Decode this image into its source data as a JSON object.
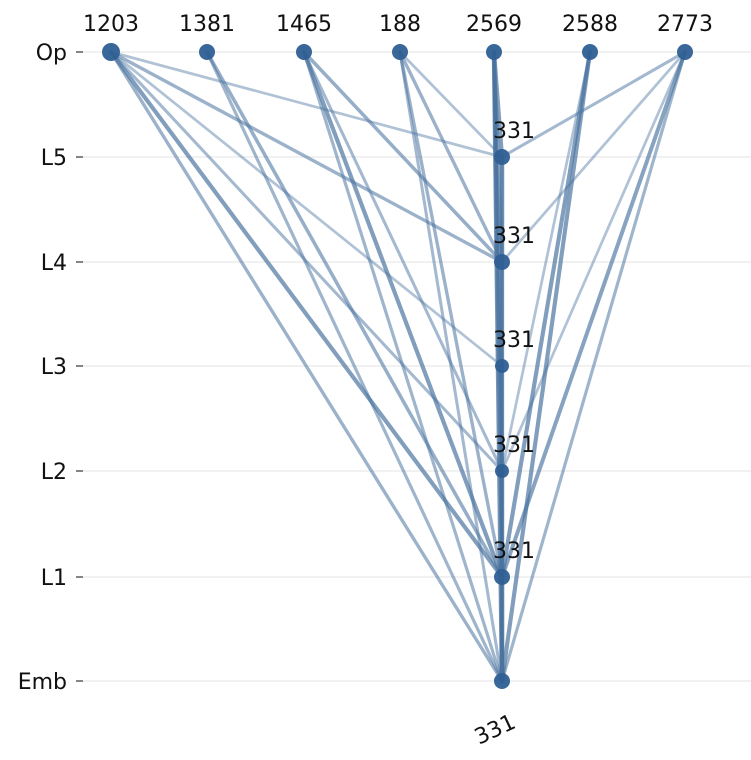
{
  "chart_data": {
    "type": "scatter",
    "y_levels": [
      "Op",
      "L5",
      "L4",
      "L3",
      "L2",
      "L1",
      "Emb"
    ],
    "top_labels": [
      "1203",
      "1381",
      "1465",
      "188",
      "2569",
      "2588",
      "2773"
    ],
    "column_label": "331",
    "node_labels": [
      {
        "level": "L5",
        "text": "331"
      },
      {
        "level": "L4",
        "text": "331"
      },
      {
        "level": "L3",
        "text": "331"
      },
      {
        "level": "L2",
        "text": "331"
      },
      {
        "level": "L1",
        "text": "331"
      }
    ],
    "nodes": [
      {
        "id": "op-1203",
        "level": "Op",
        "col": 0,
        "size": 9
      },
      {
        "id": "op-1381",
        "level": "Op",
        "col": 1,
        "size": 8
      },
      {
        "id": "op-1465",
        "level": "Op",
        "col": 2,
        "size": 8
      },
      {
        "id": "op-188",
        "level": "Op",
        "col": 3,
        "size": 8
      },
      {
        "id": "op-2569",
        "level": "Op",
        "col": 4,
        "size": 8
      },
      {
        "id": "op-2588",
        "level": "Op",
        "col": 5,
        "size": 8
      },
      {
        "id": "op-2773",
        "level": "Op",
        "col": 6,
        "size": 8
      },
      {
        "id": "l5-331",
        "level": "L5",
        "col": 7,
        "size": 8
      },
      {
        "id": "l4-331",
        "level": "L4",
        "col": 7,
        "size": 8
      },
      {
        "id": "l3-331",
        "level": "L3",
        "col": 7,
        "size": 7
      },
      {
        "id": "l2-331",
        "level": "L2",
        "col": 7,
        "size": 7
      },
      {
        "id": "l1-331",
        "level": "L1",
        "col": 7,
        "size": 8
      },
      {
        "id": "emb-331",
        "level": "Emb",
        "col": 7,
        "size": 8
      }
    ],
    "edges": [
      {
        "from": "op-1203",
        "to": "l5-331",
        "weight": 0.35
      },
      {
        "from": "op-1203",
        "to": "l4-331",
        "weight": 0.55
      },
      {
        "from": "op-1203",
        "to": "l3-331",
        "weight": 0.35
      },
      {
        "from": "op-1203",
        "to": "l2-331",
        "weight": 0.45
      },
      {
        "from": "op-1203",
        "to": "l1-331",
        "weight": 0.8
      },
      {
        "from": "op-1203",
        "to": "emb-331",
        "weight": 0.55
      },
      {
        "from": "op-1381",
        "to": "l1-331",
        "weight": 0.6
      },
      {
        "from": "op-1381",
        "to": "emb-331",
        "weight": 0.5
      },
      {
        "from": "op-1465",
        "to": "l4-331",
        "weight": 0.6
      },
      {
        "from": "op-1465",
        "to": "l2-331",
        "weight": 0.45
      },
      {
        "from": "op-1465",
        "to": "l1-331",
        "weight": 0.8
      },
      {
        "from": "op-1465",
        "to": "emb-331",
        "weight": 0.5
      },
      {
        "from": "op-188",
        "to": "l5-331",
        "weight": 0.35
      },
      {
        "from": "op-188",
        "to": "l4-331",
        "weight": 0.55
      },
      {
        "from": "op-188",
        "to": "l1-331",
        "weight": 0.55
      },
      {
        "from": "op-188",
        "to": "emb-331",
        "weight": 0.45
      },
      {
        "from": "op-2569",
        "to": "l5-331",
        "weight": 0.8
      },
      {
        "from": "op-2569",
        "to": "l4-331",
        "weight": 0.7
      },
      {
        "from": "op-2569",
        "to": "l3-331",
        "weight": 0.55
      },
      {
        "from": "op-2569",
        "to": "l2-331",
        "weight": 0.6
      },
      {
        "from": "op-2569",
        "to": "l1-331",
        "weight": 0.7
      },
      {
        "from": "op-2569",
        "to": "emb-331",
        "weight": 0.9
      },
      {
        "from": "op-2588",
        "to": "l2-331",
        "weight": 0.35
      },
      {
        "from": "op-2588",
        "to": "l1-331",
        "weight": 0.8
      },
      {
        "from": "op-2588",
        "to": "emb-331",
        "weight": 0.8
      },
      {
        "from": "op-2773",
        "to": "l5-331",
        "weight": 0.45
      },
      {
        "from": "op-2773",
        "to": "l4-331",
        "weight": 0.35
      },
      {
        "from": "op-2773",
        "to": "l2-331",
        "weight": 0.35
      },
      {
        "from": "op-2773",
        "to": "l1-331",
        "weight": 0.75
      },
      {
        "from": "op-2773",
        "to": "emb-331",
        "weight": 0.5
      },
      {
        "from": "l5-331",
        "to": "l4-331",
        "weight": 0.9
      },
      {
        "from": "l4-331",
        "to": "l3-331",
        "weight": 0.85
      },
      {
        "from": "l3-331",
        "to": "l2-331",
        "weight": 0.85
      },
      {
        "from": "l2-331",
        "to": "l1-331",
        "weight": 0.9
      },
      {
        "from": "l1-331",
        "to": "emb-331",
        "weight": 0.95
      },
      {
        "from": "l5-331",
        "to": "emb-331",
        "weight": 0.4
      },
      {
        "from": "l4-331",
        "to": "emb-331",
        "weight": 0.45
      },
      {
        "from": "l3-331",
        "to": "emb-331",
        "weight": 0.4
      },
      {
        "from": "l2-331",
        "to": "emb-331",
        "weight": 0.5
      }
    ],
    "grid": "horizontal",
    "colors": {
      "node": "#2f5f93",
      "edge": "#4a739f",
      "grid": "#e3e3e3",
      "tick": "#333333"
    }
  }
}
